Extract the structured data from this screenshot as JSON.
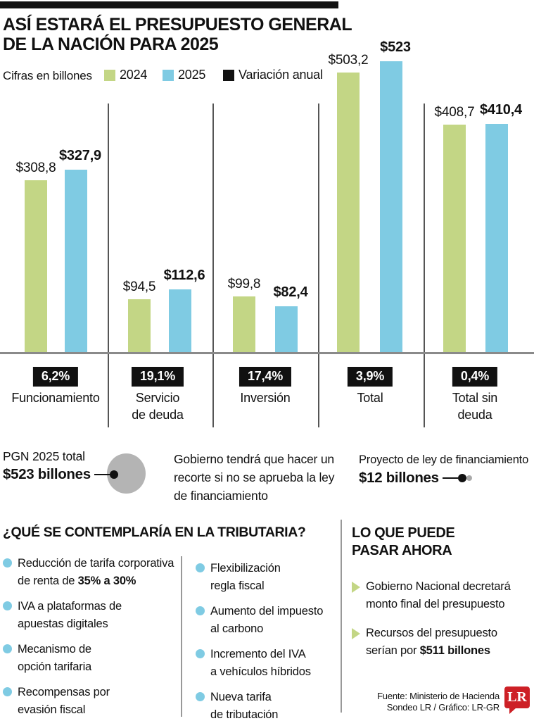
{
  "colors": {
    "green_2024": "#c3d685",
    "blue_2025": "#7fcbe3",
    "black": "#111111",
    "gray_circle": "#b4b4b4",
    "lr_red": "#cd2026"
  },
  "header": {
    "title_line1": "ASÍ ESTARÁ EL PRESUPUESTO GENERAL",
    "title_line2": "DE LA NACIÓN PARA 2025"
  },
  "legend": {
    "note": "Cifras en billones",
    "items": [
      {
        "label": "2024",
        "color": "#c3d685"
      },
      {
        "label": "2025",
        "color": "#7fcbe3"
      },
      {
        "label": "Variación anual",
        "color": "#111111"
      }
    ]
  },
  "chart_data": {
    "type": "bar",
    "title": "ASÍ ESTARÁ EL PRESUPUESTO GENERAL DE LA NACIÓN PARA 2025",
    "units_note": "Cifras en billones",
    "categories": [
      "Funcionamiento",
      "Servicio de deuda",
      "Inversión",
      "Total",
      "Total sin deuda"
    ],
    "category_lines": [
      [
        "Funcionamiento"
      ],
      [
        "Servicio",
        "de deuda"
      ],
      [
        "Inversión"
      ],
      [
        "Total"
      ],
      [
        "Total sin",
        "deuda"
      ]
    ],
    "series": [
      {
        "name": "2024",
        "color": "#c3d685",
        "values": [
          308.8,
          94.5,
          99.8,
          503.2,
          408.7
        ],
        "labels": [
          "$308,8",
          "$94,5",
          "$99,8",
          "$503,2",
          "$408,7"
        ]
      },
      {
        "name": "2025",
        "color": "#7fcbe3",
        "values": [
          327.9,
          112.6,
          82.4,
          523,
          410.4
        ],
        "labels": [
          "$327,9",
          "$112,6",
          "$82,4",
          "$523",
          "$410,4"
        ]
      }
    ],
    "variation": {
      "name": "Variación anual",
      "color": "#111111",
      "labels": [
        "6,2%",
        "19,1%",
        "17,4%",
        "3,9%",
        "0,4%"
      ]
    },
    "ylim": [
      0,
      523
    ],
    "grid": false,
    "legend_position": "top"
  },
  "annotations": {
    "left": {
      "label": "PGN 2025 total",
      "amount": "$523 billones"
    },
    "center": {
      "text": "Gobierno tendrá que hacer un\nrecorte si no se aprueba la ley\nde financiamiento"
    },
    "right": {
      "label": "Proyecto de ley de financiamiento",
      "amount": "$12 billones"
    }
  },
  "tributaria": {
    "title": "¿QUÉ SE CONTEMPLARÍA EN LA TRIBUTARIA?",
    "col1": [
      {
        "plain": "Reducción de tarifa corporativa\nde renta de ",
        "bold": "35% a 30%"
      },
      {
        "plain": "IVA a plataformas de\napuestas digitales",
        "bold": ""
      },
      {
        "plain": "Mecanismo de\nopción tarifaria",
        "bold": ""
      },
      {
        "plain": "Recompensas por\nevasión fiscal",
        "bold": ""
      }
    ],
    "col2": [
      {
        "plain": "Flexibilización\nregla fiscal",
        "bold": ""
      },
      {
        "plain": "Aumento del impuesto\nal carbono",
        "bold": ""
      },
      {
        "plain": "Incremento del IVA\na vehículos híbridos",
        "bold": ""
      },
      {
        "plain": "Nueva tarifa\nde tributación",
        "bold": ""
      }
    ]
  },
  "ahora": {
    "title_line1": "LO QUE PUEDE",
    "title_line2": "PASAR AHORA",
    "items": [
      {
        "plain": "Gobierno Nacional decretará\nmonto final del presupuesto",
        "bold": ""
      },
      {
        "plain": "Recursos del presupuesto\nserían por ",
        "bold": "$511 billones"
      }
    ]
  },
  "footer": {
    "source_line1": "Fuente: Ministerio de Hacienda",
    "source_line2": "Sondeo LR / Gráfico: LR-GR",
    "logo": "LR"
  }
}
